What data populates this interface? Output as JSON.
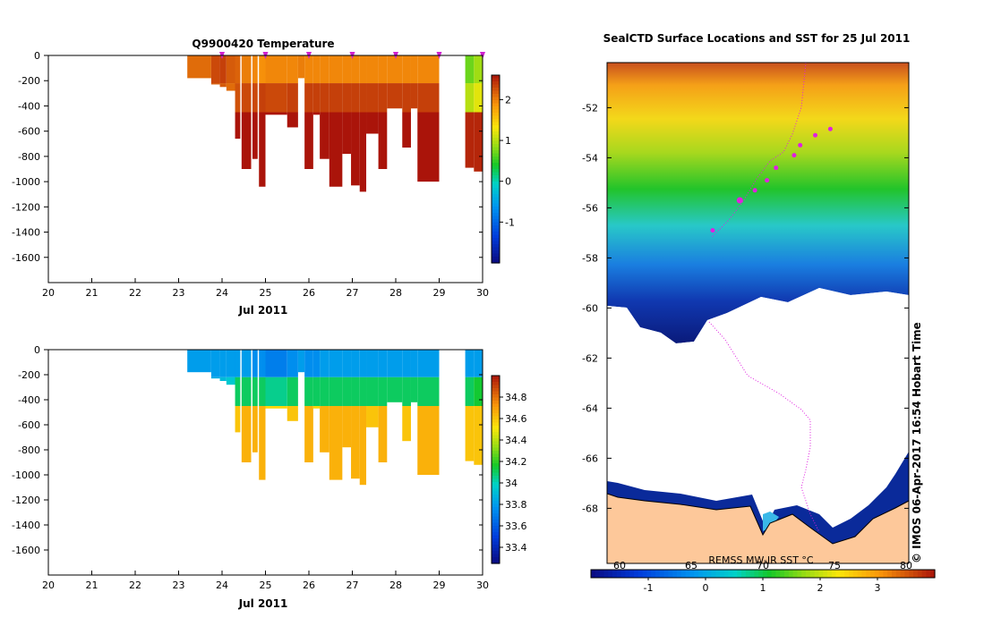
{
  "chart_data": [
    {
      "type": "heatmap",
      "title": "Q9900420  Temperature",
      "xlabel": "Jul 2011",
      "ylabel": "",
      "x_tick_labels": [
        "20",
        "21",
        "22",
        "23",
        "24",
        "25",
        "26",
        "27",
        "28",
        "29",
        "30"
      ],
      "xlim": [
        20,
        30
      ],
      "ylim": [
        -1800,
        0
      ],
      "y_tick_values": [
        0,
        -200,
        -400,
        -600,
        -800,
        -1000,
        -1200,
        -1400,
        -1600
      ],
      "colorbar": {
        "min": -2,
        "max": 2.6,
        "tick_values": [
          -1,
          0,
          1,
          2
        ]
      },
      "profiles": [
        {
          "day": 23.2,
          "w": 0.55,
          "depth": 180,
          "v": [
            2.1,
            2.05,
            2.0
          ]
        },
        {
          "day": 23.75,
          "w": 0.2,
          "depth": 230,
          "v": [
            2.3,
            2.2,
            2.0
          ]
        },
        {
          "day": 23.95,
          "w": 0.15,
          "depth": 250,
          "v": [
            2.35,
            2.2,
            2.0
          ]
        },
        {
          "day": 24.1,
          "w": 0.22,
          "depth": 280,
          "v": [
            2.2,
            2.1,
            2.4
          ]
        },
        {
          "day": 24.3,
          "w": 0.12,
          "depth": 660,
          "v": [
            2.15,
            2.25,
            2.6
          ]
        },
        {
          "day": 24.45,
          "w": 0.22,
          "depth": 900,
          "v": [
            2.0,
            2.3,
            2.6
          ]
        },
        {
          "day": 24.7,
          "w": 0.12,
          "depth": 820,
          "v": [
            1.95,
            2.3,
            2.6
          ]
        },
        {
          "day": 24.85,
          "w": 0.15,
          "depth": 1040,
          "v": [
            1.9,
            2.35,
            2.6
          ]
        },
        {
          "day": 25.0,
          "w": 0.5,
          "depth": 470,
          "v": [
            1.95,
            2.3,
            2.6
          ]
        },
        {
          "day": 25.5,
          "w": 0.25,
          "depth": 570,
          "v": [
            1.95,
            2.35,
            2.6
          ]
        },
        {
          "day": 25.75,
          "w": 0.15,
          "depth": 180,
          "v": [
            2.0,
            2.0,
            2.0
          ]
        },
        {
          "day": 25.9,
          "w": 0.2,
          "depth": 900,
          "v": [
            1.95,
            2.35,
            2.6
          ]
        },
        {
          "day": 26.1,
          "w": 0.15,
          "depth": 470,
          "v": [
            1.95,
            2.35,
            2.6
          ]
        },
        {
          "day": 26.25,
          "w": 0.22,
          "depth": 820,
          "v": [
            1.95,
            2.35,
            2.6
          ]
        },
        {
          "day": 26.47,
          "w": 0.3,
          "depth": 1040,
          "v": [
            1.95,
            2.35,
            2.6
          ]
        },
        {
          "day": 26.77,
          "w": 0.2,
          "depth": 780,
          "v": [
            1.95,
            2.35,
            2.6
          ]
        },
        {
          "day": 26.97,
          "w": 0.2,
          "depth": 1030,
          "v": [
            1.95,
            2.35,
            2.6
          ]
        },
        {
          "day": 27.17,
          "w": 0.15,
          "depth": 1080,
          "v": [
            1.95,
            2.35,
            2.6
          ]
        },
        {
          "day": 27.32,
          "w": 0.28,
          "depth": 620,
          "v": [
            1.95,
            2.35,
            2.6
          ]
        },
        {
          "day": 27.6,
          "w": 0.2,
          "depth": 900,
          "v": [
            1.95,
            2.35,
            2.6
          ]
        },
        {
          "day": 27.8,
          "w": 0.2,
          "depth": 420,
          "v": [
            1.95,
            2.35,
            2.6
          ]
        },
        {
          "day": 28.0,
          "w": 0.15,
          "depth": 420,
          "v": [
            1.95,
            2.35,
            2.6
          ]
        },
        {
          "day": 28.15,
          "w": 0.2,
          "depth": 730,
          "v": [
            1.95,
            2.35,
            2.6
          ]
        },
        {
          "day": 28.35,
          "w": 0.15,
          "depth": 420,
          "v": [
            1.95,
            2.35,
            2.6
          ]
        },
        {
          "day": 28.5,
          "w": 0.5,
          "depth": 1000,
          "v": [
            1.95,
            2.35,
            2.6
          ]
        },
        {
          "day": 29.6,
          "w": 0.2,
          "depth": 890,
          "v": [
            0.7,
            1.0,
            2.5
          ]
        },
        {
          "day": 29.8,
          "w": 0.2,
          "depth": 920,
          "v": [
            0.9,
            1.2,
            2.5
          ]
        }
      ],
      "markers": [
        24,
        25,
        26,
        27,
        28,
        29,
        30
      ]
    },
    {
      "type": "heatmap",
      "title": "",
      "xlabel": "Jul 2011",
      "ylabel": "",
      "x_tick_labels": [
        "20",
        "21",
        "22",
        "23",
        "24",
        "25",
        "26",
        "27",
        "28",
        "29",
        "30"
      ],
      "xlim": [
        20,
        30
      ],
      "ylim": [
        -1800,
        0
      ],
      "y_tick_values": [
        0,
        -200,
        -400,
        -600,
        -800,
        -1000,
        -1200,
        -1400,
        -1600
      ],
      "colorbar": {
        "min": 33.25,
        "max": 35.0,
        "tick_values": [
          33.4,
          33.6,
          33.8,
          34,
          34.2,
          34.4,
          34.6,
          34.8
        ]
      },
      "profiles": [
        {
          "day": 23.2,
          "w": 0.55,
          "depth": 180,
          "v": [
            33.8,
            33.8,
            33.8
          ]
        },
        {
          "day": 23.75,
          "w": 0.2,
          "depth": 230,
          "v": [
            33.8,
            33.85,
            34.0
          ]
        },
        {
          "day": 23.95,
          "w": 0.15,
          "depth": 250,
          "v": [
            33.8,
            33.9,
            34.1
          ]
        },
        {
          "day": 24.1,
          "w": 0.22,
          "depth": 280,
          "v": [
            33.8,
            33.95,
            34.2
          ]
        },
        {
          "day": 24.3,
          "w": 0.12,
          "depth": 660,
          "v": [
            33.8,
            34.1,
            34.6
          ]
        },
        {
          "day": 24.45,
          "w": 0.22,
          "depth": 900,
          "v": [
            33.8,
            34.1,
            34.65
          ]
        },
        {
          "day": 24.7,
          "w": 0.12,
          "depth": 820,
          "v": [
            33.75,
            34.1,
            34.65
          ]
        },
        {
          "day": 24.85,
          "w": 0.15,
          "depth": 1040,
          "v": [
            33.75,
            34.1,
            34.65
          ]
        },
        {
          "day": 25.0,
          "w": 0.5,
          "depth": 470,
          "v": [
            33.7,
            34.05,
            34.55
          ]
        },
        {
          "day": 25.5,
          "w": 0.25,
          "depth": 570,
          "v": [
            33.75,
            34.1,
            34.6
          ]
        },
        {
          "day": 25.75,
          "w": 0.15,
          "depth": 180,
          "v": [
            33.8,
            33.8,
            33.8
          ]
        },
        {
          "day": 25.9,
          "w": 0.2,
          "depth": 900,
          "v": [
            33.75,
            34.1,
            34.65
          ]
        },
        {
          "day": 26.1,
          "w": 0.15,
          "depth": 470,
          "v": [
            33.75,
            34.1,
            34.55
          ]
        },
        {
          "day": 26.25,
          "w": 0.22,
          "depth": 820,
          "v": [
            33.8,
            34.1,
            34.65
          ]
        },
        {
          "day": 26.47,
          "w": 0.3,
          "depth": 1040,
          "v": [
            33.8,
            34.1,
            34.65
          ]
        },
        {
          "day": 26.77,
          "w": 0.2,
          "depth": 780,
          "v": [
            33.8,
            34.1,
            34.65
          ]
        },
        {
          "day": 26.97,
          "w": 0.2,
          "depth": 1030,
          "v": [
            33.8,
            34.1,
            34.65
          ]
        },
        {
          "day": 27.17,
          "w": 0.15,
          "depth": 1080,
          "v": [
            33.8,
            34.1,
            34.65
          ]
        },
        {
          "day": 27.32,
          "w": 0.28,
          "depth": 620,
          "v": [
            33.8,
            34.1,
            34.6
          ]
        },
        {
          "day": 27.6,
          "w": 0.2,
          "depth": 900,
          "v": [
            33.8,
            34.1,
            34.65
          ]
        },
        {
          "day": 27.8,
          "w": 0.2,
          "depth": 420,
          "v": [
            33.8,
            34.1,
            34.55
          ]
        },
        {
          "day": 28.0,
          "w": 0.15,
          "depth": 420,
          "v": [
            33.8,
            34.1,
            34.55
          ]
        },
        {
          "day": 28.15,
          "w": 0.2,
          "depth": 730,
          "v": [
            33.8,
            34.1,
            34.6
          ]
        },
        {
          "day": 28.35,
          "w": 0.15,
          "depth": 420,
          "v": [
            33.8,
            34.1,
            34.55
          ]
        },
        {
          "day": 28.5,
          "w": 0.5,
          "depth": 1000,
          "v": [
            33.8,
            34.1,
            34.65
          ]
        },
        {
          "day": 29.6,
          "w": 0.2,
          "depth": 890,
          "v": [
            33.8,
            34.1,
            34.6
          ]
        },
        {
          "day": 29.8,
          "w": 0.2,
          "depth": 920,
          "v": [
            33.8,
            34.15,
            34.6
          ]
        }
      ]
    },
    {
      "type": "heatmap",
      "title": "SealCTD Surface Locations and SST for 25 Jul 2011",
      "xlabel": "",
      "ylabel": "",
      "y_tick_labels": [
        "-52",
        "-54",
        "-56",
        "-58",
        "-60",
        "-62",
        "-64",
        "-66",
        "-68"
      ],
      "ylim": [
        -70,
        -50
      ],
      "credit": "© IMOS 06-Apr-2017 16:54 Hobart Time",
      "colorbar_title": "REMSS MW-IR SST °C",
      "colorbar": {
        "min": -2,
        "max": 4,
        "tick_labels": [
          "-1",
          "0",
          "1",
          "2",
          "3"
        ]
      },
      "fahrenheit_labels": [
        "60",
        "65",
        "70",
        "75",
        "80"
      ],
      "sst_bands": [
        {
          "lat": -50.5,
          "sst": 3.3
        },
        {
          "lat": -51.5,
          "sst": 2.8
        },
        {
          "lat": -52.5,
          "sst": 2.3
        },
        {
          "lat": -53.5,
          "sst": 1.7
        },
        {
          "lat": -54.5,
          "sst": 1.2
        },
        {
          "lat": -55.5,
          "sst": 0.8
        },
        {
          "lat": -56.5,
          "sst": 0.3
        },
        {
          "lat": -57.5,
          "sst": -0.3
        },
        {
          "lat": -58.5,
          "sst": -0.9
        },
        {
          "lat": -59.5,
          "sst": -1.5
        }
      ],
      "seal_locations": [
        {
          "lon_frac": 0.74,
          "lat": -52.85
        },
        {
          "lon_frac": 0.69,
          "lat": -53.1
        },
        {
          "lon_frac": 0.64,
          "lat": -53.5
        },
        {
          "lon_frac": 0.62,
          "lat": -53.9
        },
        {
          "lon_frac": 0.56,
          "lat": -54.4
        },
        {
          "lon_frac": 0.53,
          "lat": -54.9
        },
        {
          "lon_frac": 0.49,
          "lat": -55.3
        },
        {
          "lon_frac": 0.44,
          "lat": -55.7
        },
        {
          "lon_frac": 0.35,
          "lat": -56.9
        }
      ]
    }
  ]
}
